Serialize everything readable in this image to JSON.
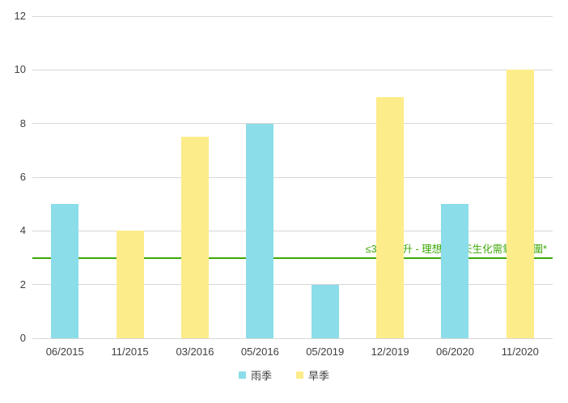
{
  "chart_data": {
    "type": "bar",
    "title": "",
    "xlabel": "",
    "ylabel": "",
    "categories": [
      "06/2015",
      "11/2015",
      "03/2016",
      "05/2016",
      "05/2019",
      "12/2019",
      "06/2020",
      "11/2020"
    ],
    "series": [
      {
        "name": "雨季",
        "color": "#8bdde9"
      },
      {
        "name": "旱季",
        "color": "#fdec8a"
      }
    ],
    "points": [
      {
        "category": "06/2015",
        "series": "雨季",
        "value": 5
      },
      {
        "category": "11/2015",
        "series": "旱季",
        "value": 4
      },
      {
        "category": "03/2016",
        "series": "旱季",
        "value": 7.5
      },
      {
        "category": "05/2016",
        "series": "雨季",
        "value": 8
      },
      {
        "category": "05/2019",
        "series": "雨季",
        "value": 2
      },
      {
        "category": "12/2019",
        "series": "旱季",
        "value": 9
      },
      {
        "category": "06/2020",
        "series": "雨季",
        "value": 5
      },
      {
        "category": "11/2020",
        "series": "旱季",
        "value": 10
      }
    ],
    "ylim": [
      0,
      12
    ],
    "yticks": [
      0,
      2,
      4,
      6,
      8,
      10,
      12
    ],
    "grid": true,
    "gridline_color": "#d6d6d6",
    "tick_label_color": "#3f3f3f",
    "legend_position": "bottom",
    "reference_line": {
      "value": 3,
      "color": "#3ca805",
      "label": "≤3 毫克/升 - 理想的五天生化需氧量範圍*"
    }
  }
}
